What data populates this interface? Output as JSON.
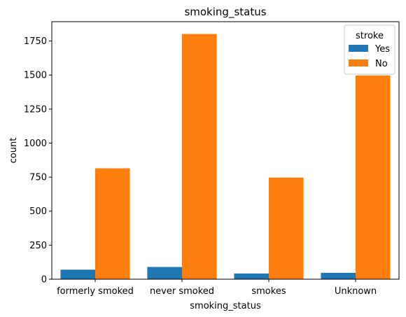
{
  "chart_data": {
    "type": "bar",
    "title": "smoking_status",
    "xlabel": "smoking_status",
    "ylabel": "count",
    "categories": [
      "formerly smoked",
      "never smoked",
      "smokes",
      "Unknown"
    ],
    "series": [
      {
        "name": "Yes",
        "color": "#1f77b4",
        "values": [
          70,
          90,
          42,
          47
        ]
      },
      {
        "name": "No",
        "color": "#ff7f0e",
        "values": [
          815,
          1802,
          747,
          1497
        ]
      }
    ],
    "ylim": [
      0,
      1892
    ],
    "yticks": [
      0,
      250,
      500,
      750,
      1000,
      1250,
      1500,
      1750
    ],
    "legend": {
      "title": "stroke",
      "position": "top-right"
    },
    "grid": false
  }
}
